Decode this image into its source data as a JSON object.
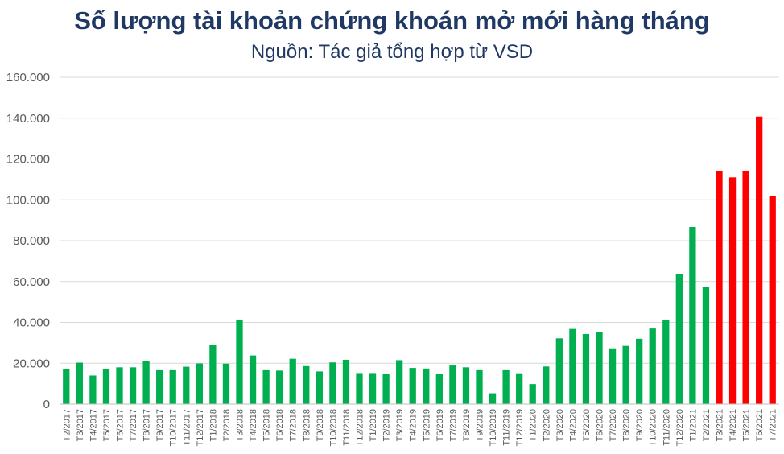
{
  "chart_data": {
    "type": "bar",
    "title": "Số lượng tài khoản chứng khoán mở mới hàng tháng",
    "subtitle": "Nguồn: Tác giả tổng hợp từ VSD",
    "xlabel": "",
    "ylabel": "",
    "ylim": [
      0,
      160000
    ],
    "yticks": [
      0,
      20000,
      40000,
      60000,
      80000,
      100000,
      120000,
      140000,
      160000
    ],
    "ytick_labels": [
      "0",
      "20.000",
      "40.000",
      "60.000",
      "80.000",
      "100.000",
      "120.000",
      "140.000",
      "160.000"
    ],
    "grid": true,
    "legend": "none",
    "colors": {
      "green": "#00b050",
      "red": "#ff0000",
      "grid": "#d9d9d9",
      "title": "#1f3864"
    },
    "categories": [
      "T2/2017",
      "T3/2017",
      "T4/2017",
      "T5/2017",
      "T6/2017",
      "T7/2017",
      "T8/2017",
      "T9/2017",
      "T10/2017",
      "T11/2017",
      "T12/2017",
      "T1/2018",
      "T2/2018",
      "T3/2018",
      "T4/2018",
      "T5/2018",
      "T6/2018",
      "T7/2018",
      "T8/2018",
      "T9/2018",
      "T10/2018",
      "T11/2018",
      "T12/2018",
      "T1/2019",
      "T2/2019",
      "T3/2019",
      "T4/2019",
      "T5/2019",
      "T6/2019",
      "T7/2019",
      "T8/2019",
      "T9/2019",
      "T10/2019",
      "T11/2019",
      "T12/2019",
      "T1/2020",
      "T2/2020",
      "T3/2020",
      "T4/2020",
      "T5/2020",
      "T6/2020",
      "T7/2020",
      "T8/2020",
      "T9/2020",
      "T10/2020",
      "T11/2020",
      "T12/2020",
      "T1/2021",
      "T2/2021",
      "T3/2021",
      "T4/2021",
      "T5/2021",
      "T6/2021",
      "T7/2021"
    ],
    "values": [
      17000,
      20300,
      14000,
      17300,
      18000,
      18000,
      21000,
      16600,
      16600,
      18300,
      19900,
      28900,
      19800,
      41400,
      23800,
      16600,
      16400,
      22200,
      18600,
      16000,
      20400,
      21700,
      15200,
      15200,
      14600,
      21500,
      17700,
      17400,
      14600,
      18900,
      18000,
      16600,
      5300,
      16600,
      15100,
      9800,
      18400,
      32200,
      36800,
      34300,
      35300,
      27300,
      28500,
      32000,
      37000,
      41400,
      63700,
      86700,
      57500,
      114000,
      111000,
      114300,
      140800,
      101800
    ],
    "value_colors": [
      "green",
      "green",
      "green",
      "green",
      "green",
      "green",
      "green",
      "green",
      "green",
      "green",
      "green",
      "green",
      "green",
      "green",
      "green",
      "green",
      "green",
      "green",
      "green",
      "green",
      "green",
      "green",
      "green",
      "green",
      "green",
      "green",
      "green",
      "green",
      "green",
      "green",
      "green",
      "green",
      "green",
      "green",
      "green",
      "green",
      "green",
      "green",
      "green",
      "green",
      "green",
      "green",
      "green",
      "green",
      "green",
      "green",
      "green",
      "green",
      "green",
      "red",
      "red",
      "red",
      "red",
      "red"
    ]
  }
}
